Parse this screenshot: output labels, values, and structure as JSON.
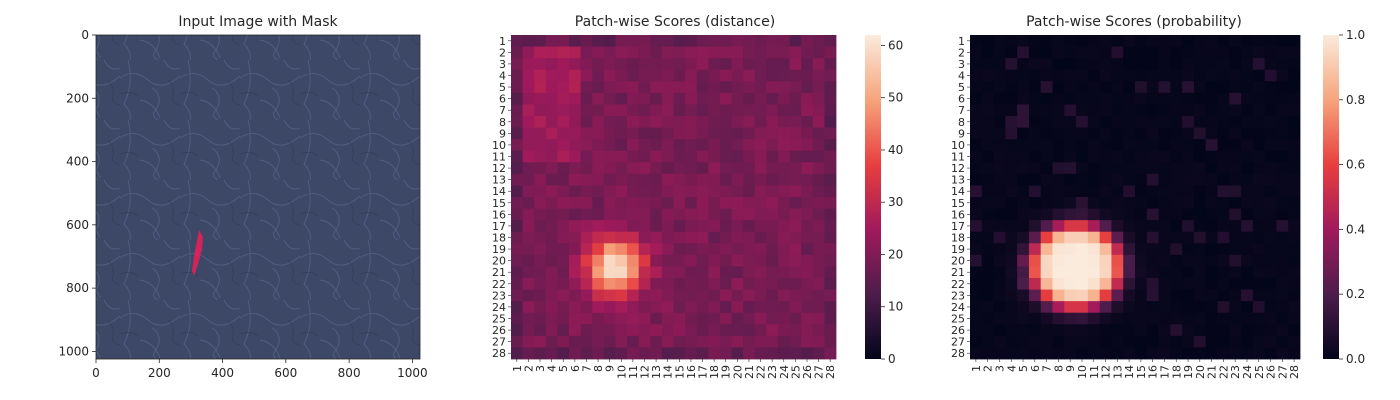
{
  "chart_data": [
    {
      "type": "image",
      "title": "Input Image with Mask",
      "x_ticks": [
        0,
        200,
        400,
        600,
        800,
        1000
      ],
      "y_ticks": [
        0,
        200,
        400,
        600,
        800,
        1000
      ],
      "xlim": [
        0,
        1024
      ],
      "ylim": [
        1024,
        0
      ],
      "background_color": "#3d4866",
      "mask_color": "#e0205a",
      "mask_region": {
        "x": [
          305,
          345
        ],
        "y": [
          615,
          775
        ]
      }
    },
    {
      "type": "heatmap",
      "title": "Patch-wise Scores (distance)",
      "rows": 28,
      "cols": 28,
      "row_labels": [
        "1",
        "2",
        "3",
        "4",
        "5",
        "6",
        "7",
        "8",
        "9",
        "10",
        "11",
        "12",
        "13",
        "14",
        "15",
        "16",
        "17",
        "18",
        "19",
        "20",
        "21",
        "22",
        "23",
        "24",
        "25",
        "26",
        "27",
        "28"
      ],
      "col_labels": [
        "1",
        "2",
        "3",
        "4",
        "5",
        "6",
        "7",
        "8",
        "9",
        "10",
        "11",
        "12",
        "13",
        "14",
        "15",
        "16",
        "17",
        "18",
        "19",
        "20",
        "21",
        "22",
        "23",
        "24",
        "25",
        "26",
        "27",
        "28"
      ],
      "colorbar_ticks": [
        0,
        10,
        20,
        30,
        40,
        50,
        60
      ],
      "vmin": 0,
      "vmax": 62,
      "background_value": 19,
      "left_band_value": 22,
      "border_value": 16,
      "hotspot": {
        "center_row": 20.5,
        "center_col": 9.5,
        "peak": 62,
        "sigma": 1.7
      }
    },
    {
      "type": "heatmap",
      "title": "Patch-wise Scores (probability)",
      "rows": 28,
      "cols": 28,
      "row_labels": [
        "1",
        "2",
        "3",
        "4",
        "5",
        "6",
        "7",
        "8",
        "9",
        "10",
        "11",
        "12",
        "13",
        "14",
        "15",
        "16",
        "17",
        "18",
        "19",
        "20",
        "21",
        "22",
        "23",
        "24",
        "25",
        "26",
        "27",
        "28"
      ],
      "col_labels": [
        "1",
        "2",
        "3",
        "4",
        "5",
        "6",
        "7",
        "8",
        "9",
        "10",
        "11",
        "12",
        "13",
        "14",
        "15",
        "16",
        "17",
        "18",
        "19",
        "20",
        "21",
        "22",
        "23",
        "24",
        "25",
        "26",
        "27",
        "28"
      ],
      "colorbar_ticks": [
        "0.0",
        "0.2",
        "0.4",
        "0.6",
        "0.8",
        "1.0"
      ],
      "vmin": 0,
      "vmax": 1,
      "hotspot": {
        "center_row": 20.5,
        "center_col": 9.5,
        "peak": 1.0,
        "sigma": 2.3
      }
    }
  ]
}
